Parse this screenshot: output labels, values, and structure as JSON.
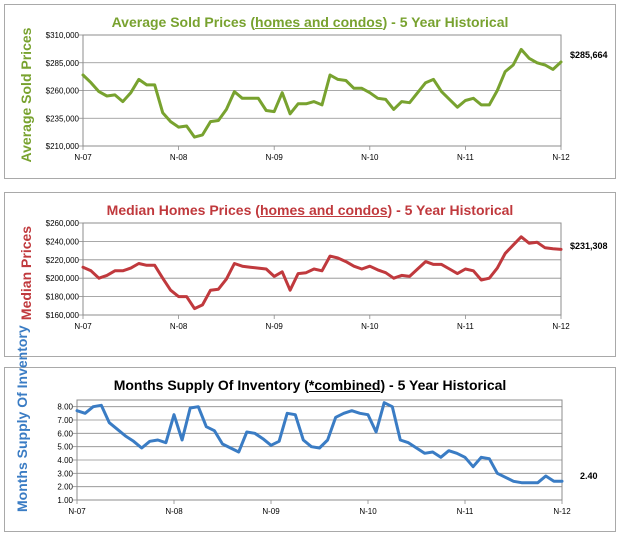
{
  "chart_data": [
    {
      "type": "line",
      "title_prefix": "Average Sold Prices (",
      "title_emph": "homes and condos",
      "title_suffix": ") - 5 Year Historical",
      "ylabel": "Average Sold Prices",
      "color": "#78a22f",
      "end_label": "$285,664",
      "ylim": [
        210000,
        310000
      ],
      "yticks": [
        210000,
        235000,
        260000,
        285000,
        310000
      ],
      "ytick_labels": [
        "$210,000",
        "$235,000",
        "$260,000",
        "$285,000",
        "$310,000"
      ],
      "xtick_labels": [
        "N-07",
        "N-08",
        "N-09",
        "N-10",
        "N-11",
        "N-12"
      ],
      "values": [
        274000,
        267000,
        259000,
        255000,
        256000,
        250000,
        258000,
        270000,
        265000,
        265000,
        240000,
        232000,
        227000,
        228000,
        218000,
        220000,
        232000,
        233000,
        243000,
        259000,
        253000,
        253000,
        253000,
        242000,
        241000,
        258000,
        239000,
        248000,
        248000,
        250000,
        247000,
        274000,
        270000,
        269000,
        262000,
        262000,
        258000,
        253000,
        252000,
        243000,
        250000,
        249000,
        258000,
        267000,
        270000,
        259000,
        252000,
        245000,
        251000,
        253000,
        247000,
        247000,
        260000,
        277000,
        283000,
        297000,
        289000,
        285000,
        283000,
        279000,
        285664
      ]
    },
    {
      "type": "line",
      "title_prefix": "Median Homes Prices (",
      "title_emph": "homes and condos",
      "title_suffix": ") - 5 Year Historical",
      "ylabel": "Median Prices",
      "color": "#c0393d",
      "end_label": "$231,308",
      "ylim": [
        160000,
        260000
      ],
      "yticks": [
        160000,
        180000,
        200000,
        220000,
        240000,
        260000
      ],
      "ytick_labels": [
        "$160,000",
        "$180,000",
        "$200,000",
        "$220,000",
        "$240,000",
        "$260,000"
      ],
      "xtick_labels": [
        "N-07",
        "N-08",
        "N-09",
        "N-10",
        "N-11",
        "N-12"
      ],
      "values": [
        212000,
        208000,
        200000,
        203000,
        208000,
        208000,
        211000,
        216000,
        214000,
        214000,
        200000,
        187000,
        180000,
        180000,
        167000,
        171000,
        187000,
        188000,
        199000,
        216000,
        213000,
        212000,
        211000,
        210000,
        202000,
        207000,
        187000,
        205000,
        206000,
        210000,
        208000,
        224000,
        222000,
        218000,
        213000,
        210000,
        213000,
        209000,
        206000,
        200000,
        203000,
        202000,
        210000,
        218000,
        215000,
        215000,
        210000,
        205000,
        210000,
        208000,
        198000,
        200000,
        211000,
        227000,
        236000,
        245000,
        238000,
        239000,
        233000,
        232000,
        231308
      ]
    },
    {
      "type": "line",
      "title_prefix": "Months Supply Of Inventory (",
      "title_emph": "*combined",
      "title_suffix": ") - 5 Year Historical",
      "ylabel": "Months Supply Of Inventory",
      "color": "#3a7cc4",
      "end_label": "2.40",
      "ylim": [
        1.0,
        8.5
      ],
      "yticks": [
        1,
        2,
        3,
        4,
        5,
        6,
        7,
        8
      ],
      "ytick_labels": [
        "1.00",
        "2.00",
        "3.00",
        "4.00",
        "5.00",
        "6.00",
        "7.00",
        "8.00"
      ],
      "xtick_labels": [
        "N-07",
        "N-08",
        "N-09",
        "N-10",
        "N-11",
        "N-12"
      ],
      "values": [
        7.7,
        7.5,
        8.0,
        8.1,
        6.8,
        6.3,
        5.8,
        5.4,
        4.9,
        5.4,
        5.5,
        5.3,
        7.4,
        5.5,
        7.9,
        8.0,
        6.5,
        6.2,
        5.2,
        4.9,
        4.6,
        6.1,
        6.0,
        5.6,
        5.1,
        5.4,
        7.5,
        7.4,
        5.5,
        5.0,
        4.9,
        5.5,
        7.2,
        7.5,
        7.7,
        7.5,
        7.4,
        6.1,
        8.3,
        8.0,
        5.5,
        5.3,
        4.9,
        4.5,
        4.6,
        4.2,
        4.7,
        4.5,
        4.2,
        3.5,
        4.2,
        4.1,
        3.0,
        2.7,
        2.4,
        2.3,
        2.3,
        2.3,
        2.8,
        2.4,
        2.4
      ]
    }
  ]
}
